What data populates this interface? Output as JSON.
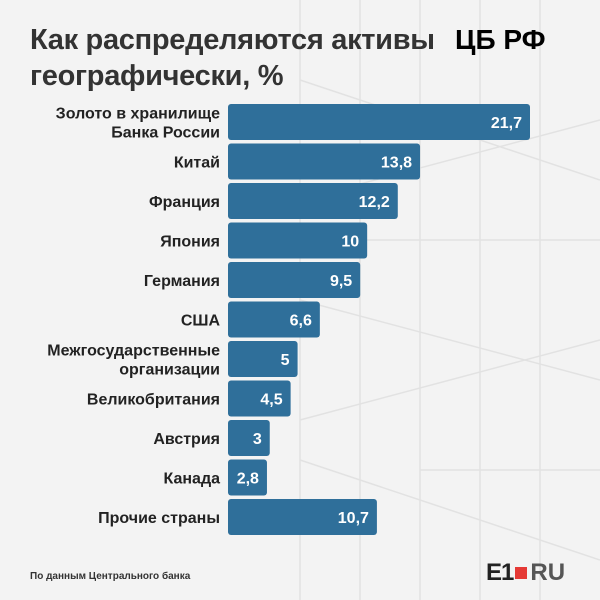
{
  "header": {
    "title": "Как распределяются активы географически, %",
    "tag": "ЦБ РФ"
  },
  "footer": {
    "source": "По данным Центрального банка",
    "logo_e1": "E1",
    "logo_ru": "RU"
  },
  "colors": {
    "bar": "#2f6f9a",
    "background": "#f3f3f3",
    "logo_accent": "#e53935"
  },
  "chart_data": {
    "type": "bar",
    "orientation": "horizontal",
    "title": "Как распределяются активы географически, %",
    "categories": [
      [
        "Золото в хранилище",
        "Банка России"
      ],
      [
        "Китай"
      ],
      [
        "Франция"
      ],
      [
        "Япония"
      ],
      [
        "Германия"
      ],
      [
        "США"
      ],
      [
        "Межгосударственные",
        "организации"
      ],
      [
        "Великобритания"
      ],
      [
        "Австрия"
      ],
      [
        "Канада"
      ],
      [
        "Прочие страны"
      ]
    ],
    "values": [
      21.7,
      13.8,
      12.2,
      10,
      9.5,
      6.6,
      5,
      4.5,
      3,
      2.8,
      10.7
    ],
    "value_labels": [
      "21,7",
      "13,8",
      "12,2",
      "10",
      "9,5",
      "6,6",
      "5",
      "4,5",
      "3",
      "2,8",
      "10,7"
    ],
    "xlim": [
      0,
      21.7
    ],
    "grid": false
  }
}
